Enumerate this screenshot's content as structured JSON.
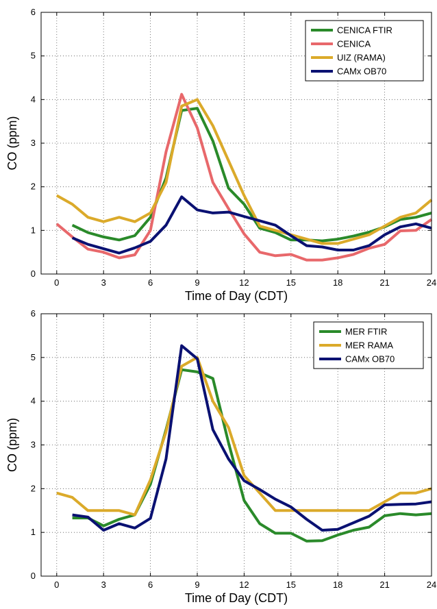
{
  "chart_data": [
    {
      "type": "line",
      "xlabel": "Time of Day (CDT)",
      "ylabel": "CO (ppm)",
      "xlim": [
        -1,
        24
      ],
      "ylim": [
        0,
        6
      ],
      "xticks": [
        0,
        3,
        6,
        9,
        12,
        15,
        18,
        21,
        24
      ],
      "yticks": [
        0,
        1,
        2,
        3,
        4,
        5,
        6
      ],
      "grid": "dotted",
      "legend_position": "top-right",
      "series": [
        {
          "name": "CENICA FTIR",
          "color": "#2a8a2a",
          "x": [
            1,
            2,
            3,
            4,
            5,
            6,
            7,
            8,
            9,
            10,
            11,
            12,
            13,
            14,
            15,
            16,
            17,
            18,
            19,
            20,
            21,
            22,
            23,
            24
          ],
          "y": [
            1.12,
            0.95,
            0.85,
            0.78,
            0.88,
            1.3,
            2.2,
            3.75,
            3.8,
            3.05,
            1.97,
            1.6,
            1.05,
            0.95,
            0.78,
            0.78,
            0.76,
            0.8,
            0.87,
            0.96,
            1.08,
            1.25,
            1.3,
            1.4
          ]
        },
        {
          "name": "CENICA",
          "color": "#e8686b",
          "x": [
            0,
            1,
            2,
            3,
            4,
            5,
            6,
            7,
            8,
            9,
            10,
            11,
            12,
            13,
            14,
            15,
            16,
            17,
            18,
            19,
            20,
            21,
            22,
            23,
            24
          ],
          "y": [
            1.15,
            0.85,
            0.57,
            0.5,
            0.37,
            0.44,
            1.0,
            2.8,
            4.12,
            3.35,
            2.1,
            1.5,
            0.92,
            0.5,
            0.42,
            0.45,
            0.32,
            0.32,
            0.37,
            0.45,
            0.59,
            0.68,
            0.99,
            1.0,
            1.25
          ]
        },
        {
          "name": "UIZ (RAMA)",
          "color": "#dbaa2a",
          "x": [
            0,
            1,
            2,
            3,
            4,
            5,
            6,
            7,
            8,
            9,
            10,
            11,
            12,
            13,
            14,
            15,
            16,
            17,
            18,
            19,
            20,
            21,
            22,
            23,
            24
          ],
          "y": [
            1.8,
            1.6,
            1.3,
            1.2,
            1.3,
            1.2,
            1.4,
            2.1,
            3.85,
            4.0,
            3.4,
            2.6,
            1.8,
            1.1,
            1.0,
            0.9,
            0.8,
            0.7,
            0.7,
            0.8,
            0.9,
            1.1,
            1.3,
            1.4,
            1.7
          ]
        },
        {
          "name": "CAMx OB70",
          "color": "#0a1172",
          "x": [
            1,
            2,
            3,
            4,
            5,
            6,
            7,
            8,
            9,
            10,
            11,
            12,
            13,
            14,
            15,
            16,
            17,
            18,
            19,
            20,
            21,
            22,
            23,
            24
          ],
          "y": [
            0.83,
            0.68,
            0.58,
            0.48,
            0.6,
            0.75,
            1.12,
            1.77,
            1.47,
            1.4,
            1.42,
            1.32,
            1.22,
            1.12,
            0.88,
            0.65,
            0.62,
            0.55,
            0.55,
            0.65,
            0.9,
            1.08,
            1.15,
            1.05
          ]
        }
      ]
    },
    {
      "type": "line",
      "xlabel": "Time of Day (CDT)",
      "ylabel": "CO (ppm)",
      "xlim": [
        -1,
        24
      ],
      "ylim": [
        0,
        6
      ],
      "xticks": [
        0,
        3,
        6,
        9,
        12,
        15,
        18,
        21,
        24
      ],
      "yticks": [
        0,
        1,
        2,
        3,
        4,
        5,
        6
      ],
      "grid": "dotted",
      "legend_position": "top-right",
      "series": [
        {
          "name": "MER FTIR",
          "color": "#2a8a2a",
          "x": [
            1,
            2,
            3,
            4,
            5,
            6,
            7,
            8,
            9,
            10,
            11,
            12,
            13,
            14,
            15,
            16,
            17,
            18,
            19,
            20,
            21,
            22,
            23,
            24
          ],
          "y": [
            1.33,
            1.33,
            1.15,
            1.3,
            1.4,
            2.1,
            3.35,
            4.72,
            4.67,
            4.52,
            3.05,
            1.73,
            1.2,
            0.98,
            0.98,
            0.8,
            0.81,
            0.94,
            1.05,
            1.12,
            1.38,
            1.43,
            1.4,
            1.43
          ]
        },
        {
          "name": "MER RAMA",
          "color": "#dbaa2a",
          "x": [
            0,
            1,
            2,
            3,
            4,
            5,
            6,
            7,
            8,
            9,
            10,
            11,
            12,
            13,
            14,
            15,
            16,
            17,
            18,
            19,
            20,
            21,
            22,
            23,
            24
          ],
          "y": [
            1.9,
            1.8,
            1.5,
            1.5,
            1.5,
            1.4,
            2.2,
            3.3,
            4.8,
            5.0,
            4.0,
            3.4,
            2.3,
            1.9,
            1.5,
            1.5,
            1.5,
            1.5,
            1.5,
            1.5,
            1.5,
            1.7,
            1.9,
            1.9,
            2.0
          ]
        },
        {
          "name": "CAMx OB70",
          "color": "#0a1172",
          "x": [
            1,
            2,
            3,
            4,
            5,
            6,
            7,
            8,
            9,
            10,
            11,
            12,
            13,
            14,
            15,
            16,
            17,
            18,
            19,
            20,
            21,
            22,
            23,
            24
          ],
          "y": [
            1.4,
            1.35,
            1.05,
            1.2,
            1.1,
            1.32,
            2.68,
            5.27,
            4.97,
            3.35,
            2.68,
            2.18,
            1.98,
            1.76,
            1.58,
            1.3,
            1.05,
            1.07,
            1.22,
            1.37,
            1.63,
            1.64,
            1.65,
            1.7
          ]
        }
      ]
    }
  ]
}
